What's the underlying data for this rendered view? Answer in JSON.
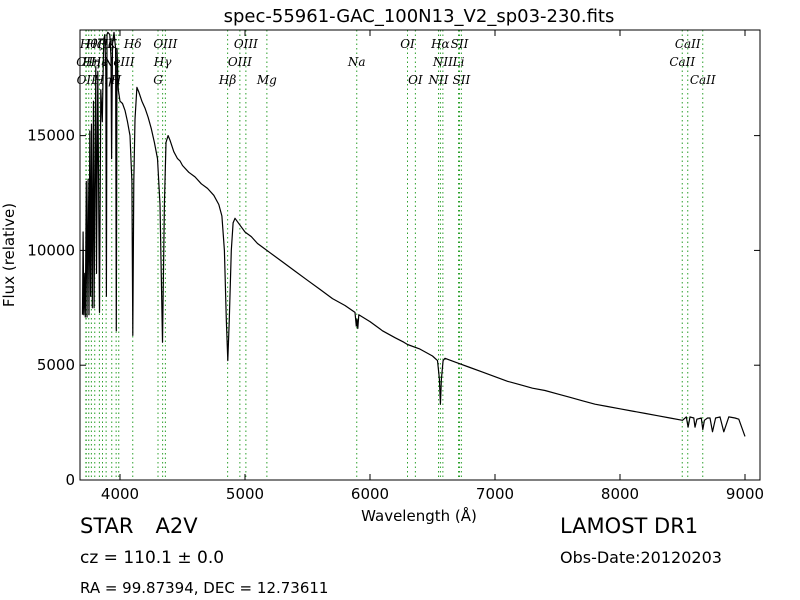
{
  "chart_data": {
    "type": "line",
    "title": "spec-55961-GAC_100N13_V2_sp03-230.fits",
    "xlabel": "Wavelength (Å)",
    "ylabel": "Flux (relative)",
    "xlim": [
      3680,
      9120
    ],
    "ylim": [
      0,
      19600
    ],
    "xticks": [
      4000,
      5000,
      6000,
      7000,
      8000,
      9000
    ],
    "yticks": [
      0,
      5000,
      10000,
      15000
    ],
    "grid": false,
    "line_color": "#000000",
    "marker_line_color": "#2ca02c",
    "series": [
      {
        "points": [
          [
            3700,
            7200
          ],
          [
            3705,
            10800
          ],
          [
            3710,
            7200
          ],
          [
            3718,
            9000
          ],
          [
            3722,
            7100
          ],
          [
            3730,
            13000
          ],
          [
            3736,
            7100
          ],
          [
            3745,
            13100
          ],
          [
            3752,
            7200
          ],
          [
            3758,
            15200
          ],
          [
            3765,
            8000
          ],
          [
            3772,
            15500
          ],
          [
            3778,
            7500
          ],
          [
            3788,
            16500
          ],
          [
            3793,
            7500
          ],
          [
            3806,
            18000
          ],
          [
            3812,
            9000
          ],
          [
            3822,
            17800
          ],
          [
            3836,
            7300
          ],
          [
            3846,
            17000
          ],
          [
            3858,
            15600
          ],
          [
            3866,
            18200
          ],
          [
            3870,
            19200
          ],
          [
            3878,
            19400
          ],
          [
            3886,
            17800
          ],
          [
            3891,
            8000
          ],
          [
            3896,
            19400
          ],
          [
            3902,
            19500
          ],
          [
            3918,
            19400
          ],
          [
            3928,
            18400
          ],
          [
            3933,
            14000
          ],
          [
            3940,
            19000
          ],
          [
            3952,
            19500
          ],
          [
            3965,
            18800
          ],
          [
            3970,
            6500
          ],
          [
            3976,
            18800
          ],
          [
            3986,
            17000
          ],
          [
            4000,
            16500
          ],
          [
            4020,
            16400
          ],
          [
            4040,
            16100
          ],
          [
            4060,
            15600
          ],
          [
            4080,
            15000
          ],
          [
            4095,
            13000
          ],
          [
            4102,
            6300
          ],
          [
            4110,
            13000
          ],
          [
            4120,
            15700
          ],
          [
            4135,
            17100
          ],
          [
            4150,
            16900
          ],
          [
            4175,
            16500
          ],
          [
            4200,
            16200
          ],
          [
            4225,
            15800
          ],
          [
            4250,
            15300
          ],
          [
            4275,
            14700
          ],
          [
            4300,
            14000
          ],
          [
            4320,
            12000
          ],
          [
            4340,
            6000
          ],
          [
            4355,
            12000
          ],
          [
            4368,
            14700
          ],
          [
            4385,
            15000
          ],
          [
            4400,
            14800
          ],
          [
            4430,
            14300
          ],
          [
            4460,
            14000
          ],
          [
            4480,
            13900
          ],
          [
            4500,
            13700
          ],
          [
            4550,
            13400
          ],
          [
            4600,
            13200
          ],
          [
            4650,
            12900
          ],
          [
            4700,
            12700
          ],
          [
            4750,
            12400
          ],
          [
            4790,
            12000
          ],
          [
            4815,
            11500
          ],
          [
            4835,
            10000
          ],
          [
            4850,
            7000
          ],
          [
            4862,
            5200
          ],
          [
            4874,
            7000
          ],
          [
            4890,
            10000
          ],
          [
            4905,
            11200
          ],
          [
            4920,
            11400
          ],
          [
            4960,
            11100
          ],
          [
            5000,
            10800
          ],
          [
            5050,
            10600
          ],
          [
            5100,
            10300
          ],
          [
            5150,
            10100
          ],
          [
            5200,
            9900
          ],
          [
            5300,
            9500
          ],
          [
            5400,
            9100
          ],
          [
            5500,
            8700
          ],
          [
            5600,
            8300
          ],
          [
            5700,
            7900
          ],
          [
            5800,
            7600
          ],
          [
            5880,
            7300
          ],
          [
            5890,
            6700
          ],
          [
            5896,
            7000
          ],
          [
            5902,
            6600
          ],
          [
            5910,
            7200
          ],
          [
            6000,
            6900
          ],
          [
            6100,
            6500
          ],
          [
            6200,
            6200
          ],
          [
            6270,
            6000
          ],
          [
            6300,
            5900
          ],
          [
            6400,
            5700
          ],
          [
            6500,
            5400
          ],
          [
            6540,
            5200
          ],
          [
            6555,
            4400
          ],
          [
            6563,
            3300
          ],
          [
            6571,
            4400
          ],
          [
            6585,
            5200
          ],
          [
            6600,
            5300
          ],
          [
            6700,
            5100
          ],
          [
            6800,
            4900
          ],
          [
            6900,
            4700
          ],
          [
            7000,
            4500
          ],
          [
            7100,
            4300
          ],
          [
            7200,
            4150
          ],
          [
            7300,
            4000
          ],
          [
            7400,
            3900
          ],
          [
            7500,
            3750
          ],
          [
            7600,
            3600
          ],
          [
            7700,
            3450
          ],
          [
            7800,
            3300
          ],
          [
            7900,
            3200
          ],
          [
            8000,
            3100
          ],
          [
            8100,
            3000
          ],
          [
            8200,
            2900
          ],
          [
            8300,
            2800
          ],
          [
            8400,
            2700
          ],
          [
            8500,
            2600
          ],
          [
            8530,
            2750
          ],
          [
            8545,
            2300
          ],
          [
            8560,
            2750
          ],
          [
            8590,
            2700
          ],
          [
            8600,
            2300
          ],
          [
            8615,
            2650
          ],
          [
            8650,
            2700
          ],
          [
            8662,
            2200
          ],
          [
            8675,
            2600
          ],
          [
            8700,
            2700
          ],
          [
            8720,
            2700
          ],
          [
            8740,
            2100
          ],
          [
            8765,
            2700
          ],
          [
            8800,
            2750
          ],
          [
            8830,
            2100
          ],
          [
            8870,
            2750
          ],
          [
            8920,
            2700
          ],
          [
            8950,
            2650
          ],
          [
            9000,
            1900
          ]
        ]
      }
    ],
    "lines": [
      {
        "wavelength": 3727,
        "label": "OII",
        "row": 2
      },
      {
        "wavelength": 3730,
        "label": "OII",
        "row": 3
      },
      {
        "wavelength": 3750,
        "label": "Hθ",
        "row": 1
      },
      {
        "wavelength": 3771,
        "label": "Hη",
        "row": 2
      },
      {
        "wavelength": 3798,
        "label": "Hζ",
        "row": 1
      },
      {
        "wavelength": 3835,
        "label": "Hε",
        "row": 2
      },
      {
        "wavelength": 3860,
        "label": "Hη",
        "row": 3
      },
      {
        "wavelength": 3889,
        "label": "Hζ",
        "row": 1
      },
      {
        "wavelength": 3934,
        "label": "K",
        "row": 1
      },
      {
        "wavelength": 3969,
        "label": "H",
        "row": 3
      },
      {
        "wavelength": 3990,
        "label": "NeIII",
        "row": 2
      },
      {
        "wavelength": 4102,
        "label": "Hδ",
        "row": 1
      },
      {
        "wavelength": 4304,
        "label": "G",
        "row": 3
      },
      {
        "wavelength": 4341,
        "label": "Hγ",
        "row": 2
      },
      {
        "wavelength": 4363,
        "label": "OIII",
        "row": 1
      },
      {
        "wavelength": 4861,
        "label": "Hβ",
        "row": 3
      },
      {
        "wavelength": 4959,
        "label": "OIII",
        "row": 2
      },
      {
        "wavelength": 5007,
        "label": "OIII",
        "row": 1
      },
      {
        "wavelength": 5175,
        "label": "Mg",
        "row": 3
      },
      {
        "wavelength": 5894,
        "label": "Na",
        "row": 2
      },
      {
        "wavelength": 6300,
        "label": "OI",
        "row": 1
      },
      {
        "wavelength": 6363,
        "label": "OI",
        "row": 3
      },
      {
        "wavelength": 6548,
        "label": "NII",
        "row": 3
      },
      {
        "wavelength": 6563,
        "label": "Hα",
        "row": 1
      },
      {
        "wavelength": 6583,
        "label": "NII",
        "row": 2
      },
      {
        "wavelength": 6716,
        "label": "SII",
        "row": 1
      },
      {
        "wavelength": 6708,
        "label": "Li",
        "row": 2
      },
      {
        "wavelength": 6731,
        "label": "SII",
        "row": 3
      },
      {
        "wavelength": 8498,
        "label": "CaII",
        "row": 2
      },
      {
        "wavelength": 8542,
        "label": "CaII",
        "row": 1
      },
      {
        "wavelength": 8662,
        "label": "CaII",
        "row": 3
      }
    ]
  },
  "info": {
    "object_class": "STAR",
    "subclass": "A2V",
    "cz": "cz = 110.1 ± 0.0",
    "radec": "RA = 99.87394, DEC = 12.73611",
    "survey": "LAMOST DR1",
    "obs_date": "Obs-Date:20120203"
  }
}
